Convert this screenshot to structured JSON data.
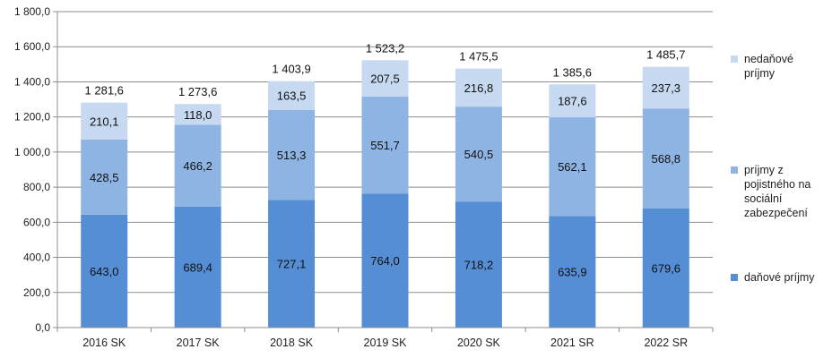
{
  "chart_data": {
    "type": "bar",
    "stacked": true,
    "categories": [
      "2016 SK",
      "2017 SK",
      "2018 SK",
      "2019 SK",
      "2020 SK",
      "2021 SR",
      "2022 SR"
    ],
    "series": [
      {
        "name": "daňové príjmy",
        "color": "#558ed5",
        "values": [
          643.0,
          689.4,
          727.1,
          764.0,
          718.2,
          635.9,
          679.6
        ],
        "labels": [
          "643,0",
          "689,4",
          "727,1",
          "764,0",
          "718,2",
          "635,9",
          "679,6"
        ]
      },
      {
        "name": "príjmy z poistného na sociální zabezpečení",
        "color": "#8eb4e3",
        "values": [
          428.5,
          466.2,
          513.3,
          551.7,
          540.5,
          562.1,
          568.8
        ],
        "labels": [
          "428,5",
          "466,2",
          "513,3",
          "551,7",
          "540,5",
          "562,1",
          "568,8"
        ]
      },
      {
        "name": "nedaňové príjmy",
        "color": "#c6d9f1",
        "values": [
          210.1,
          118.0,
          163.5,
          207.5,
          216.8,
          187.6,
          237.3
        ],
        "labels": [
          "210,1",
          "118,0",
          "163,5",
          "207,5",
          "216,8",
          "187,6",
          "237,3"
        ]
      }
    ],
    "totals": [
      1281.6,
      1273.6,
      1403.9,
      1523.2,
      1475.5,
      1385.6,
      1485.7
    ],
    "total_labels": [
      "1 281,6",
      "1 273,6",
      "1 403,9",
      "1 523,2",
      "1 475,5",
      "1 385,6",
      "1 485,7"
    ],
    "ylim": [
      0,
      1800
    ],
    "yticks": [
      0,
      200,
      400,
      600,
      800,
      1000,
      1200,
      1400,
      1600,
      1800
    ],
    "ytick_labels": [
      "0,0",
      "200,0",
      "400,0",
      "600,0",
      "800,0",
      "1 000,0",
      "1 200,0",
      "1 400,0",
      "1 600,0",
      "1 800,0"
    ],
    "grid": true,
    "legend_position": "right"
  },
  "legend": [
    {
      "label_lines": [
        "nedaňové",
        "príjmy"
      ],
      "color": "#c6d9f1"
    },
    {
      "label_lines": [
        "príjmy z",
        "pojistného na",
        "sociální",
        "zabezpečení"
      ],
      "color": "#8eb4e3"
    },
    {
      "label_lines": [
        "daňové príjmy"
      ],
      "color": "#558ed5"
    }
  ]
}
